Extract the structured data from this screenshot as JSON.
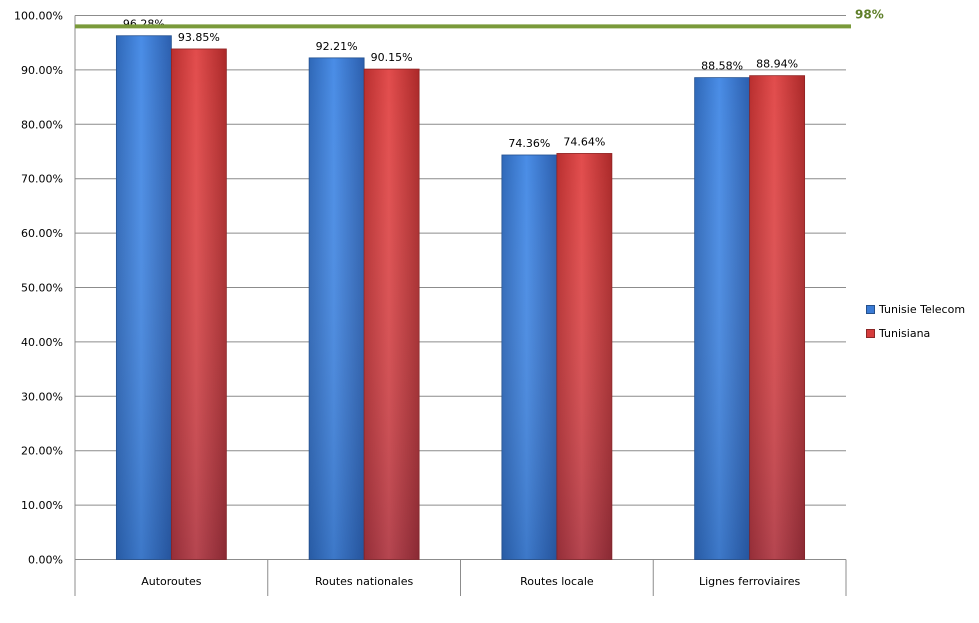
{
  "chart_data": {
    "type": "bar",
    "title": "",
    "xlabel": "",
    "ylabel": "",
    "categories": [
      "Autoroutes",
      "Routes nationales",
      "Routes locale",
      "Lignes ferroviaires"
    ],
    "series": [
      {
        "name": "Tunisie Telecom",
        "values": [
          96.28,
          92.21,
          74.36,
          88.58
        ],
        "labels": [
          "96.28%",
          "92.21%",
          "74.36%",
          "88.58%"
        ],
        "color": "#3a7bd5"
      },
      {
        "name": "Tunisiana",
        "values": [
          93.85,
          90.15,
          74.64,
          88.94
        ],
        "labels": [
          "93.85%",
          "90.15%",
          "74.64%",
          "88.94%"
        ],
        "color": "#d63c3c"
      }
    ],
    "ylim": [
      0,
      100
    ],
    "yticks": [
      0,
      10,
      20,
      30,
      40,
      50,
      60,
      70,
      80,
      90,
      100
    ],
    "ytick_labels": [
      "0.00%",
      "10.00%",
      "20.00%",
      "30.00%",
      "40.00%",
      "50.00%",
      "60.00%",
      "70.00%",
      "80.00%",
      "90.00%",
      "100.00%"
    ],
    "grid": true,
    "legend_position": "right",
    "target_line": {
      "value": 98,
      "label": "98%",
      "color": "#7a9a3a"
    }
  }
}
